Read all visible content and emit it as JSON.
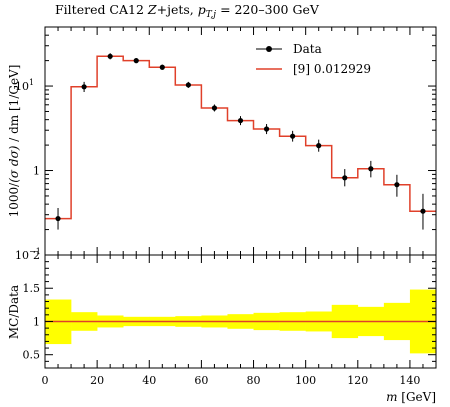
{
  "title": "Filtered CA12 Z+jets, p_{T,j} = 220–300 GeV",
  "title_parts": {
    "prefix": "Filtered CA12 ",
    "z": "Z",
    "jets": "+jets, ",
    "p": "p",
    "sub": "T,j",
    "suffix": " = 220–300 GeV"
  },
  "chart_data": [
    {
      "type": "line",
      "panel": "main",
      "ylabel": "1000/(σ dσ) / dm [1/GeV]",
      "ylabel_parts": {
        "lead": "1000/",
        "sigma_term": "(σ dσ)",
        "tail": " / dm [1/GeV]"
      },
      "yscale": "log",
      "ylim": [
        0.1,
        50
      ],
      "xlim": [
        0,
        150
      ],
      "yticks": [
        {
          "value": 10,
          "label": "10",
          "exp": "1"
        },
        {
          "value": 1,
          "label": "1",
          "exp": ""
        },
        {
          "value": 0.1,
          "label": "10",
          "exp": "−1"
        }
      ],
      "legend": {
        "placement": "top-right",
        "entries": [
          "Data",
          "[9] 0.012929"
        ]
      },
      "series": [
        {
          "name": "Data",
          "style": "points-with-errors",
          "color": "#000000",
          "x": [
            5,
            15,
            25,
            35,
            45,
            55,
            65,
            75,
            85,
            95,
            105,
            115,
            125,
            135,
            145
          ],
          "y": [
            0.27,
            9.8,
            22.5,
            20.0,
            16.7,
            10.3,
            5.5,
            3.9,
            3.1,
            2.55,
            1.97,
            0.82,
            1.05,
            0.68,
            0.33
          ],
          "err_low": [
            0.07,
            1.3,
            1.8,
            1.3,
            1.1,
            0.8,
            0.5,
            0.45,
            0.4,
            0.35,
            0.3,
            0.17,
            0.22,
            0.19,
            0.13
          ],
          "err_high": [
            0.09,
            1.4,
            2.0,
            1.4,
            1.2,
            0.9,
            0.55,
            0.5,
            0.45,
            0.4,
            0.35,
            0.22,
            0.25,
            0.21,
            0.2
          ]
        },
        {
          "name": "[9] 0.012929",
          "style": "histogram-step",
          "color": "#e0402a",
          "bin_edges": [
            0,
            10,
            20,
            30,
            40,
            50,
            60,
            70,
            80,
            90,
            100,
            110,
            120,
            130,
            140,
            150
          ],
          "y": [
            0.27,
            9.8,
            22.5,
            20.0,
            16.7,
            10.3,
            5.5,
            3.9,
            3.1,
            2.55,
            1.97,
            0.82,
            1.05,
            0.68,
            0.33
          ]
        }
      ]
    },
    {
      "type": "area",
      "panel": "ratio",
      "ylabel": "MC/Data",
      "xlabel": "m [GeV]",
      "xlabel_parts": {
        "m": "m",
        "unit": " [GeV]"
      },
      "ylim": [
        0.3,
        2.0
      ],
      "xlim": [
        0,
        150
      ],
      "yticks": [
        0.5,
        1,
        1.5,
        2
      ],
      "xticks": [
        0,
        20,
        40,
        60,
        80,
        100,
        120,
        140
      ],
      "band_color": "#ffff00",
      "line_color": "#e0402a",
      "bin_edges": [
        0,
        10,
        20,
        30,
        40,
        50,
        60,
        70,
        80,
        90,
        100,
        110,
        120,
        130,
        140,
        150
      ],
      "band_low": [
        0.66,
        0.86,
        0.91,
        0.93,
        0.93,
        0.92,
        0.91,
        0.89,
        0.87,
        0.86,
        0.85,
        0.75,
        0.78,
        0.72,
        0.52
      ],
      "band_high": [
        1.33,
        1.14,
        1.09,
        1.07,
        1.07,
        1.08,
        1.09,
        1.11,
        1.13,
        1.14,
        1.15,
        1.25,
        1.22,
        1.28,
        1.48
      ],
      "ratio": [
        1,
        1,
        1,
        1,
        1,
        1,
        1,
        1,
        1,
        1,
        1,
        1,
        1,
        1,
        1
      ]
    }
  ]
}
